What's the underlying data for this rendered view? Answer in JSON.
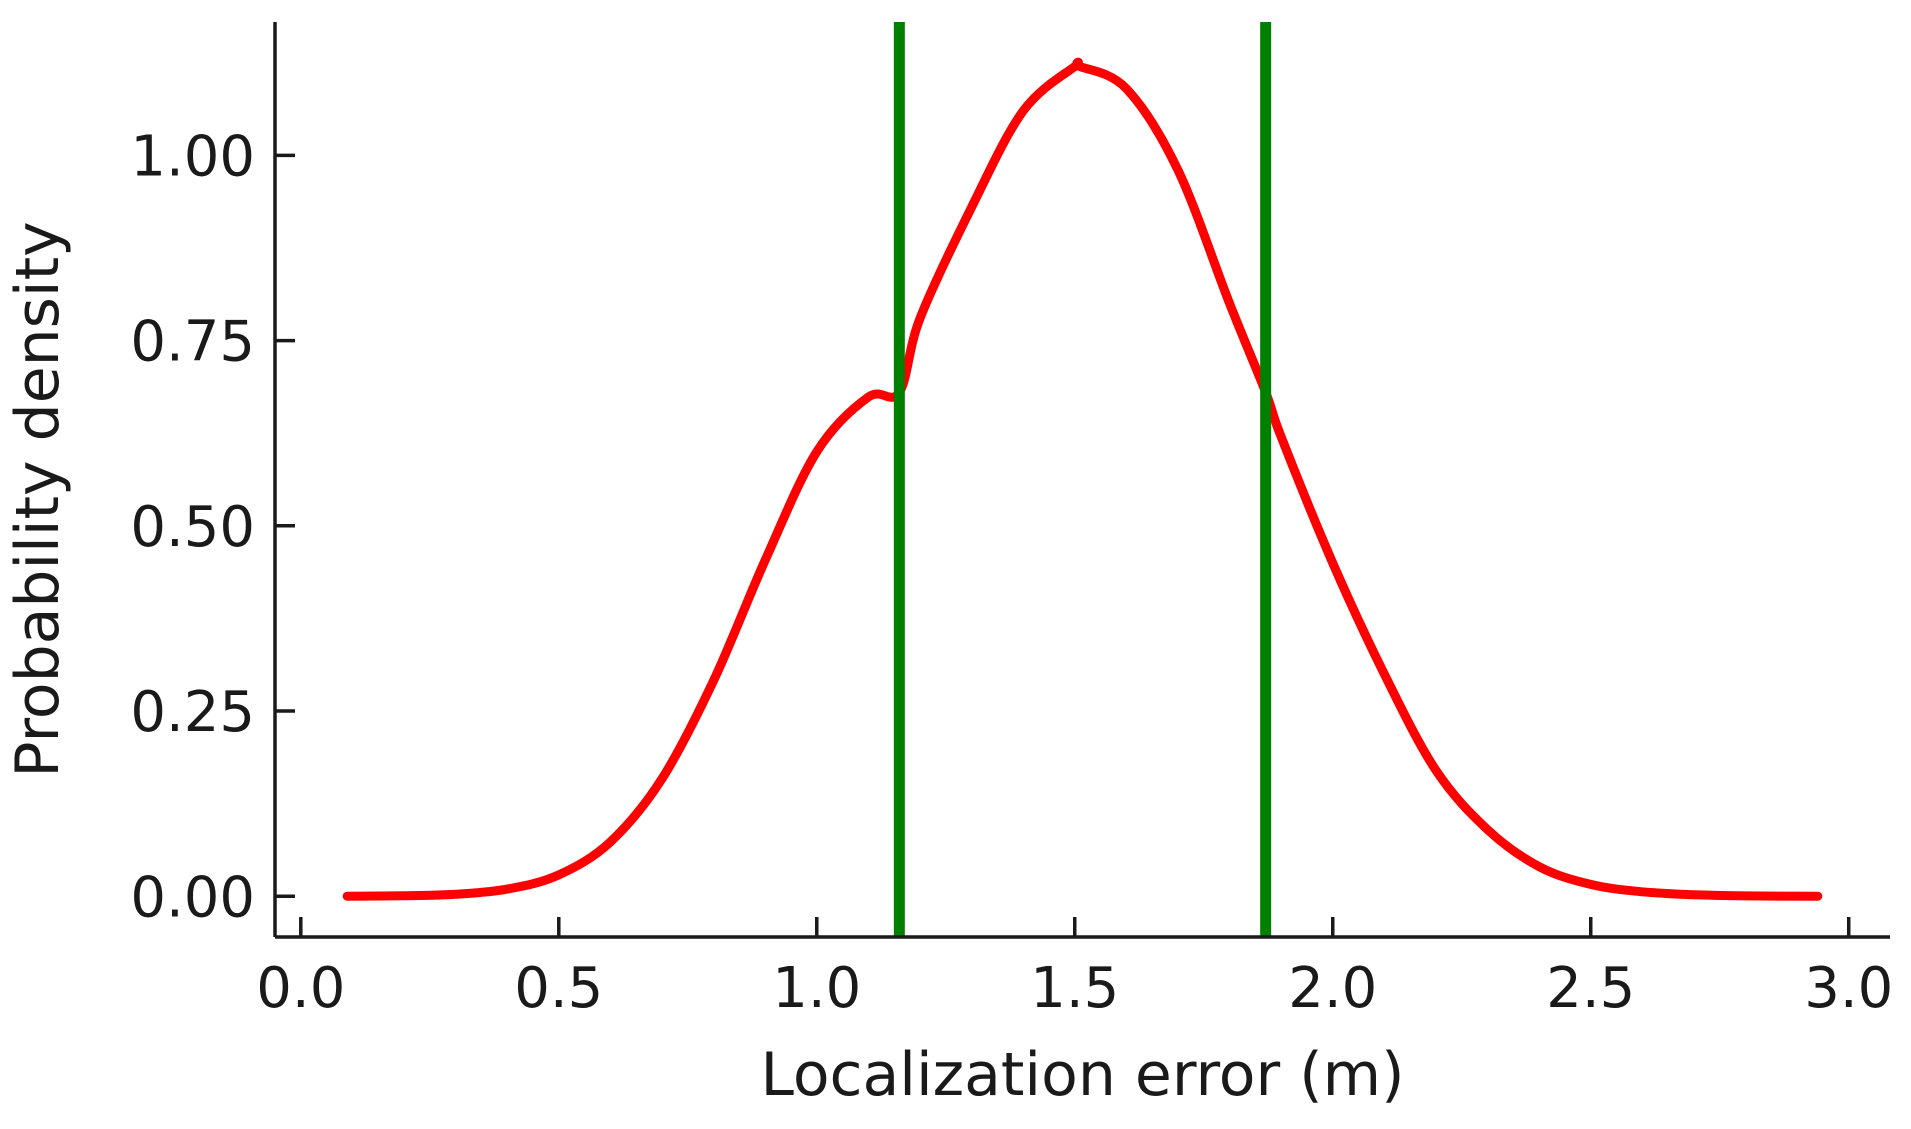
{
  "chart_data": {
    "type": "line",
    "title": "",
    "xlabel": "Localization error (m)",
    "ylabel": "Probability density",
    "xlim": [
      -0.05,
      3.08
    ],
    "ylim": [
      -0.055,
      1.18
    ],
    "xticks": [
      0.0,
      0.5,
      1.0,
      1.5,
      2.0,
      2.5,
      3.0
    ],
    "xtick_labels": [
      "0.0",
      "0.5",
      "1.0",
      "1.5",
      "2.0",
      "2.5",
      "3.0"
    ],
    "yticks": [
      0.0,
      0.25,
      0.5,
      0.75,
      1.0
    ],
    "ytick_labels": [
      "0.00",
      "0.25",
      "0.50",
      "0.75",
      "1.00"
    ],
    "grid": false,
    "legend": "none",
    "series": [
      {
        "color": "#ff0000",
        "x": [
          0.09,
          0.2,
          0.3,
          0.4,
          0.5,
          0.6,
          0.7,
          0.8,
          0.9,
          1.0,
          1.1,
          1.16,
          1.2,
          1.3,
          1.4,
          1.5,
          1.51,
          1.6,
          1.7,
          1.8,
          1.87,
          1.9,
          2.0,
          2.1,
          2.2,
          2.3,
          2.4,
          2.5,
          2.6,
          2.7,
          2.8,
          2.94
        ],
        "y": [
          0.0001,
          0.0006,
          0.0027,
          0.0096,
          0.0288,
          0.0734,
          0.1586,
          0.2911,
          0.4537,
          0.6,
          0.6738,
          0.68,
          0.78,
          0.93,
          1.06,
          1.12,
          1.12,
          1.09,
          0.98,
          0.8,
          0.68,
          0.62,
          0.45,
          0.3,
          0.17,
          0.09,
          0.04,
          0.016,
          0.006,
          0.002,
          0.0005,
          0.0001
        ]
      }
    ],
    "vlines": [
      {
        "x": 1.16,
        "color": "#008000"
      },
      {
        "x": 1.87,
        "color": "#008000"
      }
    ]
  }
}
